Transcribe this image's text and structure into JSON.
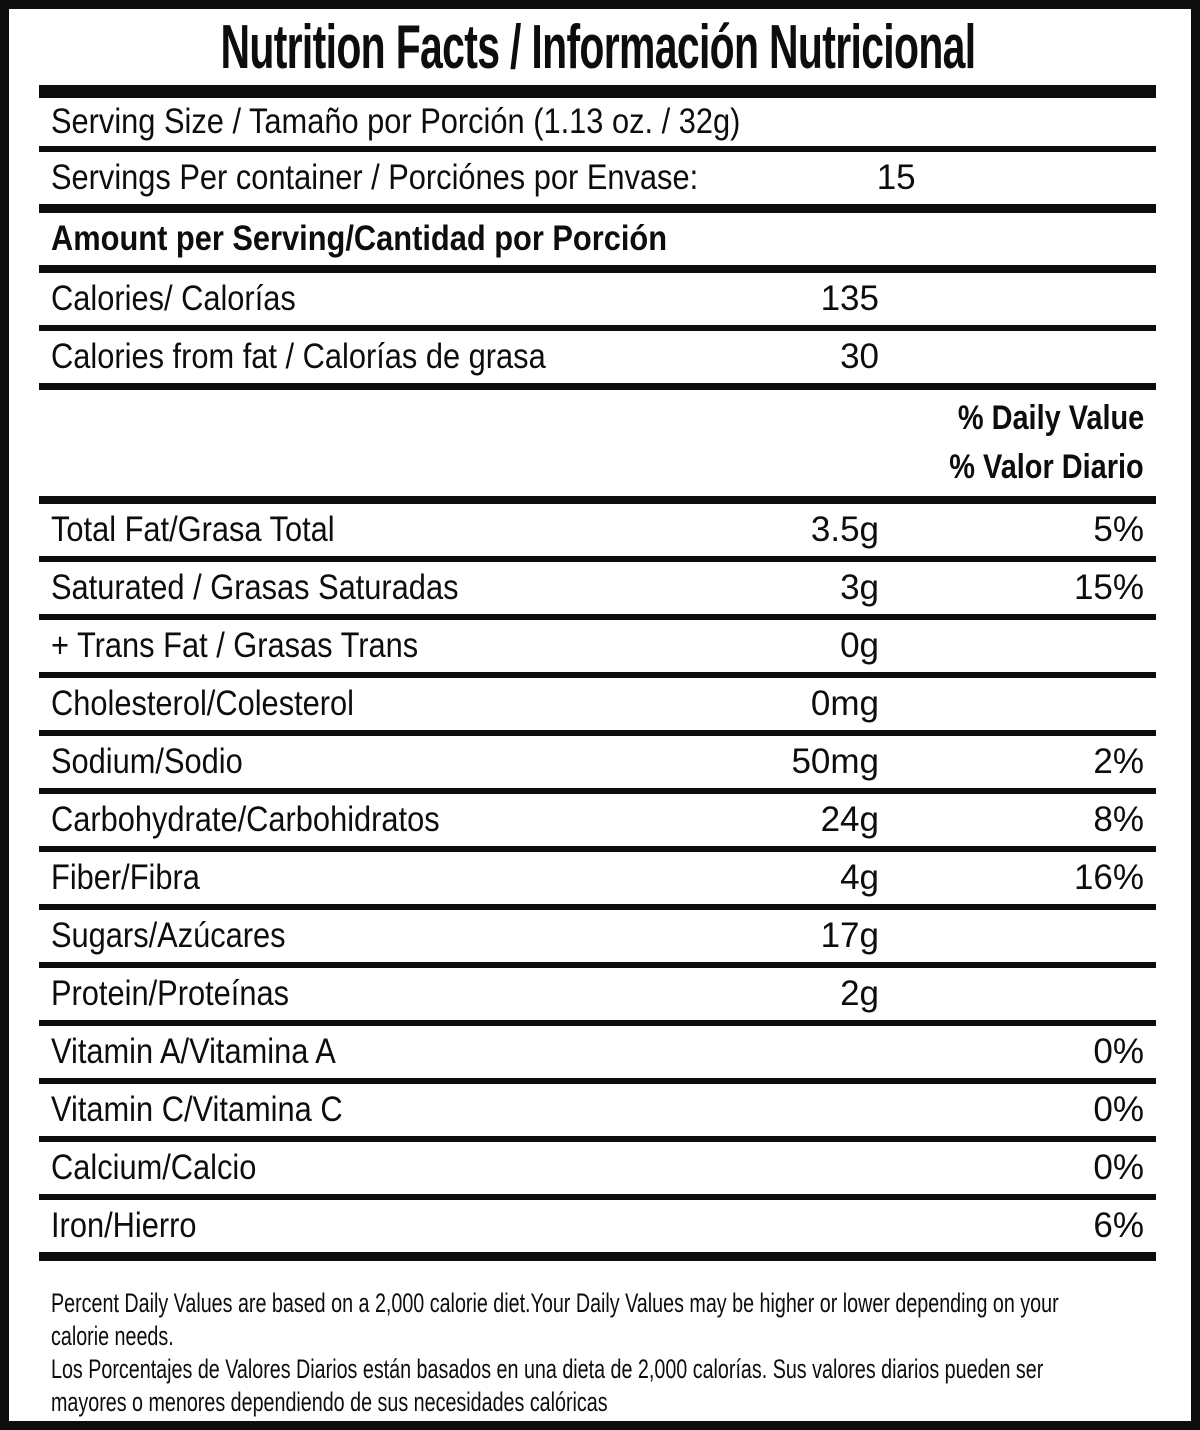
{
  "title": "Nutrition Facts / Información Nutricional",
  "serving": {
    "size_label": "Serving Size / Tamaño por Porción (1.13 oz. / 32g)",
    "per_container_label": "Servings Per container / Porciónes por Envase:",
    "per_container_value": "15"
  },
  "amount_header": "Amount per Serving/Cantidad por Porción",
  "calories": {
    "label": "Calories/ Calorías",
    "value": "135"
  },
  "calories_from_fat": {
    "label": "Calories from fat / Calorías de grasa",
    "value": "30"
  },
  "daily_value_header": {
    "line1": "% Daily Value",
    "line2": "% Valor Diario"
  },
  "nutrients": [
    {
      "label": "Total Fat/Grasa Total",
      "amount": "3.5g",
      "dv": "5%"
    },
    {
      "label": "Saturated / Grasas Saturadas",
      "amount": "3g",
      "dv": "15%"
    },
    {
      "label": "+ Trans Fat / Grasas Trans",
      "amount": "0g",
      "dv": ""
    },
    {
      "label": "Cholesterol/Colesterol",
      "amount": "0mg",
      "dv": ""
    },
    {
      "label": "Sodium/Sodio",
      "amount": "50mg",
      "dv": "2%"
    },
    {
      "label": "Carbohydrate/Carbohidratos",
      "amount": "24g",
      "dv": "8%"
    },
    {
      "label": "Fiber/Fibra",
      "amount": "4g",
      "dv": "16%"
    },
    {
      "label": "Sugars/Azúcares",
      "amount": "17g",
      "dv": ""
    },
    {
      "label": "Protein/Proteínas",
      "amount": "2g",
      "dv": ""
    },
    {
      "label": "Vitamin A/Vitamina A",
      "amount": "",
      "dv": "0%"
    },
    {
      "label": "Vitamin C/Vitamina C",
      "amount": "",
      "dv": "0%"
    },
    {
      "label": "Calcium/Calcio",
      "amount": "",
      "dv": "0%"
    },
    {
      "label": "Iron/Hierro",
      "amount": "",
      "dv": "6%"
    }
  ],
  "footnote": {
    "lines": [
      "Percent Daily Values are based on a 2,000 calorie diet.Your Daily Values may be higher or lower depending on your",
      "calorie needs.",
      "Los Porcentajes de Valores Diarios están basados en una dieta de 2,000 calorías. Sus valores diarios pueden ser",
      "mayores o menores dependiendo de sus necesidades calóricas"
    ]
  },
  "colors": {
    "text": "#0d0d0d",
    "background": "#ffffff",
    "border": "#0d0d0d"
  }
}
